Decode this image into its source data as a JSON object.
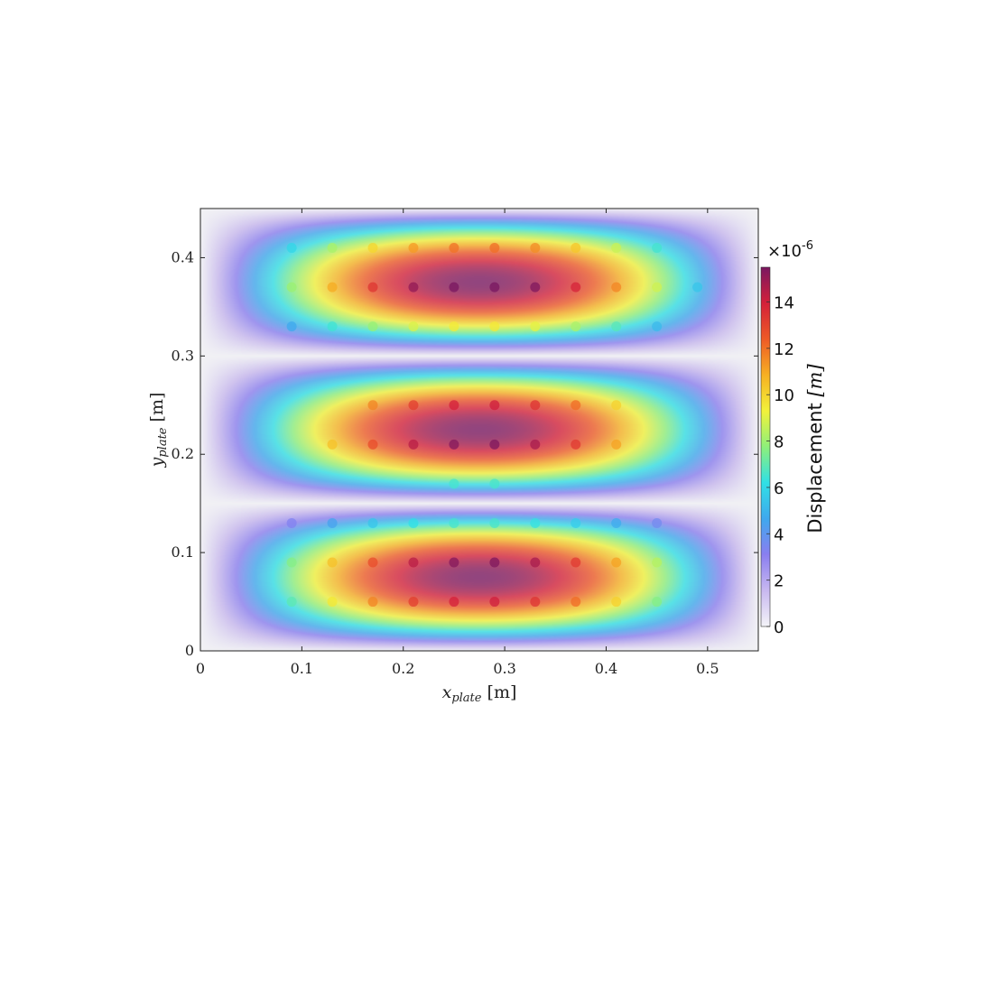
{
  "chart_data": {
    "type": "heatmap",
    "title": "",
    "xlabel": {
      "base": "x",
      "sub": "plate",
      "unit": "[m]"
    },
    "ylabel": {
      "base": "y",
      "sub": "plate",
      "unit": "[m]"
    },
    "xlim": [
      0,
      0.55
    ],
    "ylim": [
      0,
      0.45
    ],
    "x_ticks": [
      0,
      0.1,
      0.2,
      0.3,
      0.4,
      0.5
    ],
    "x_tick_labels": [
      "0",
      "0.1",
      "0.2",
      "0.3",
      "0.4",
      "0.5"
    ],
    "y_ticks": [
      0,
      0.1,
      0.2,
      0.3,
      0.4
    ],
    "y_tick_labels": [
      "0",
      "0.1",
      "0.2",
      "0.3",
      "0.4"
    ],
    "field": {
      "description_of_mode": "plate displacement mode with 3 antinode bands",
      "peak_displacement": 1.55e-05,
      "mode_x": 1,
      "mode_y": 3,
      "plate_size": [
        0.55,
        0.45
      ]
    },
    "colorbar": {
      "label": "Displacement [m]",
      "label_text": "Displacement ",
      "label_unit": "[m]",
      "multiplier": "×10",
      "exponent": "-6",
      "range": [
        0,
        15.5
      ],
      "ticks": [
        0,
        2,
        4,
        6,
        8,
        10,
        12,
        14
      ],
      "tick_labels": [
        "0",
        "2",
        "4",
        "6",
        "8",
        "10",
        "12",
        "14"
      ],
      "colormap": [
        "#f4f4f8",
        "#c8b8f0",
        "#8a7ef0",
        "#3fa8ee",
        "#30e0e6",
        "#8ef07a",
        "#f2f23a",
        "#f7b022",
        "#ee5a26",
        "#d4203a",
        "#7a1760"
      ]
    },
    "sensor_points": {
      "x": [
        0.09,
        0.13,
        0.17,
        0.21,
        0.25,
        0.29,
        0.33,
        0.37,
        0.41,
        0.45,
        0.09,
        0.13,
        0.17,
        0.21,
        0.25,
        0.29,
        0.33,
        0.37,
        0.41,
        0.45,
        0.49,
        0.09,
        0.13,
        0.17,
        0.21,
        0.25,
        0.29,
        0.33,
        0.37,
        0.41,
        0.45,
        0.17,
        0.21,
        0.25,
        0.29,
        0.33,
        0.37,
        0.41,
        0.13,
        0.17,
        0.21,
        0.25,
        0.29,
        0.33,
        0.37,
        0.41,
        0.25,
        0.29,
        0.09,
        0.13,
        0.17,
        0.21,
        0.25,
        0.29,
        0.33,
        0.37,
        0.41,
        0.45,
        0.09,
        0.13,
        0.17,
        0.21,
        0.25,
        0.29,
        0.33,
        0.37,
        0.41,
        0.45,
        0.09,
        0.13,
        0.17,
        0.21,
        0.25,
        0.29,
        0.33,
        0.37,
        0.41,
        0.45
      ],
      "y": [
        0.41,
        0.41,
        0.41,
        0.41,
        0.41,
        0.41,
        0.41,
        0.41,
        0.41,
        0.41,
        0.37,
        0.37,
        0.37,
        0.37,
        0.37,
        0.37,
        0.37,
        0.37,
        0.37,
        0.37,
        0.37,
        0.33,
        0.33,
        0.33,
        0.33,
        0.33,
        0.33,
        0.33,
        0.33,
        0.33,
        0.33,
        0.25,
        0.25,
        0.25,
        0.25,
        0.25,
        0.25,
        0.25,
        0.21,
        0.21,
        0.21,
        0.21,
        0.21,
        0.21,
        0.21,
        0.21,
        0.17,
        0.17,
        0.13,
        0.13,
        0.13,
        0.13,
        0.13,
        0.13,
        0.13,
        0.13,
        0.13,
        0.13,
        0.09,
        0.09,
        0.09,
        0.09,
        0.09,
        0.09,
        0.09,
        0.09,
        0.09,
        0.09,
        0.05,
        0.05,
        0.05,
        0.05,
        0.05,
        0.05,
        0.05,
        0.05,
        0.05,
        0.05
      ]
    },
    "grid": false,
    "legend": "none"
  }
}
